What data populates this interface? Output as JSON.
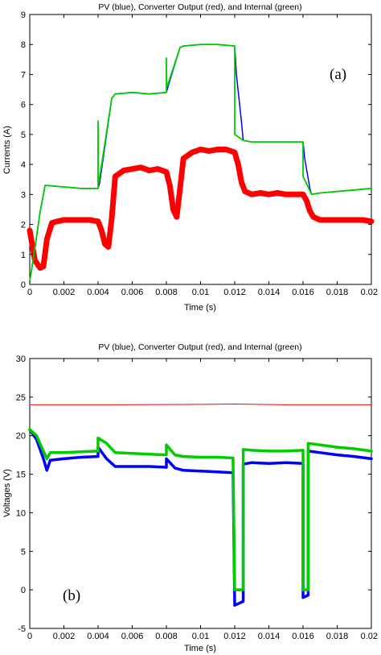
{
  "chart_data": [
    {
      "type": "line",
      "title": "PV (blue), Converter Output (red), and Internal (green)",
      "xlabel": "Time (s)",
      "ylabel": "Currents (A)",
      "panel_label": "(a)",
      "xlim": [
        0,
        0.02
      ],
      "ylim": [
        0,
        9
      ],
      "xticks": [
        "0",
        "0.002",
        "0.004",
        "0.006",
        "0.008",
        "0.01",
        "0.012",
        "0.014",
        "0.016",
        "0.018",
        "0.02"
      ],
      "yticks": [
        "0",
        "1",
        "2",
        "3",
        "4",
        "5",
        "6",
        "7",
        "8",
        "9"
      ],
      "series": [
        {
          "name": "Converter Output",
          "color": "#ff0000",
          "x": [
            0,
            0.0003,
            0.0006,
            0.0008,
            0.001,
            0.0013,
            0.0016,
            0.002,
            0.0025,
            0.003,
            0.0035,
            0.004,
            0.0042,
            0.0044,
            0.0046,
            0.0048,
            0.005,
            0.0055,
            0.006,
            0.0065,
            0.007,
            0.0075,
            0.008,
            0.0082,
            0.0084,
            0.0086,
            0.0088,
            0.009,
            0.0095,
            0.01,
            0.0105,
            0.011,
            0.0115,
            0.012,
            0.0122,
            0.0124,
            0.0126,
            0.013,
            0.0135,
            0.014,
            0.0145,
            0.015,
            0.0155,
            0.016,
            0.0162,
            0.0164,
            0.0166,
            0.017,
            0.0175,
            0.018,
            0.0185,
            0.019,
            0.0195,
            0.02
          ],
          "y": [
            1.8,
            0.8,
            0.55,
            0.6,
            1.5,
            2.05,
            2.1,
            2.15,
            2.15,
            2.15,
            2.15,
            2.1,
            1.8,
            1.35,
            1.25,
            2.2,
            3.6,
            3.8,
            3.85,
            3.9,
            3.8,
            3.85,
            3.75,
            3.3,
            2.5,
            2.25,
            3.2,
            4.2,
            4.4,
            4.5,
            4.45,
            4.5,
            4.5,
            4.4,
            4.0,
            3.4,
            3.1,
            3.0,
            3.05,
            3.0,
            3.05,
            3.0,
            3.0,
            3.0,
            2.8,
            2.45,
            2.25,
            2.15,
            2.15,
            2.15,
            2.15,
            2.15,
            2.15,
            2.1
          ]
        },
        {
          "name": "PV",
          "color": "#0000ff",
          "x": [
            0,
            0.0003,
            0.0006,
            0.0009,
            0.001,
            0.002,
            0.003,
            0.004,
            0.0041,
            0.0048,
            0.005,
            0.006,
            0.007,
            0.008,
            0.0081,
            0.0088,
            0.009,
            0.01,
            0.011,
            0.012,
            0.0121,
            0.0124,
            0.0125,
            0.013,
            0.014,
            0.015,
            0.016,
            0.0161,
            0.0164,
            0.0165,
            0.017,
            0.018,
            0.019,
            0.02
          ],
          "y": [
            0.1,
            1.2,
            2.4,
            3.3,
            3.3,
            3.25,
            3.2,
            3.2,
            3.4,
            6.2,
            6.35,
            6.4,
            6.35,
            6.4,
            6.6,
            7.9,
            7.95,
            8.0,
            8.0,
            7.95,
            7.0,
            5.4,
            4.8,
            4.75,
            4.75,
            4.75,
            4.75,
            4.2,
            3.2,
            3.0,
            3.05,
            3.1,
            3.15,
            3.2
          ]
        },
        {
          "name": "Internal",
          "color": "#00cc00",
          "x": [
            0,
            0.0003,
            0.0006,
            0.0009,
            0.001,
            0.002,
            0.003,
            0.004,
            0.004,
            0.00402,
            0.00405,
            0.0048,
            0.005,
            0.006,
            0.007,
            0.008,
            0.008,
            0.00802,
            0.00805,
            0.0088,
            0.009,
            0.01,
            0.011,
            0.012,
            0.012,
            0.0125,
            0.013,
            0.014,
            0.015,
            0.016,
            0.016,
            0.0165,
            0.017,
            0.018,
            0.019,
            0.02
          ],
          "y": [
            0.1,
            1.2,
            2.4,
            3.3,
            3.3,
            3.25,
            3.2,
            3.2,
            5.45,
            3.4,
            3.4,
            6.2,
            6.35,
            6.4,
            6.35,
            6.4,
            7.55,
            6.6,
            6.6,
            7.9,
            7.95,
            8.0,
            8.0,
            7.95,
            5.0,
            4.8,
            4.75,
            4.75,
            4.75,
            4.75,
            3.6,
            3.0,
            3.05,
            3.1,
            3.15,
            3.2
          ]
        }
      ]
    },
    {
      "type": "line",
      "title": "PV (blue), Converter Output (red), and Internal (green)",
      "xlabel": "Time (s)",
      "ylabel": "Voltages (V)",
      "panel_label": "(b)",
      "xlim": [
        0,
        0.02
      ],
      "ylim": [
        -5,
        30
      ],
      "xticks": [
        "0",
        "0.002",
        "0.004",
        "0.006",
        "0.008",
        "0.01",
        "0.012",
        "0.014",
        "0.016",
        "0.018",
        "0.02"
      ],
      "yticks": [
        "-5",
        "0",
        "5",
        "10",
        "15",
        "20",
        "25",
        "30"
      ],
      "series": [
        {
          "name": "Converter Output",
          "color": "#ff0000",
          "x": [
            0,
            0.005,
            0.01,
            0.012,
            0.015,
            0.02
          ],
          "y": [
            24.0,
            24.0,
            24.05,
            24.1,
            24.0,
            24.0
          ]
        },
        {
          "name": "PV",
          "color": "#0000ff",
          "x": [
            0,
            0.0004,
            0.0008,
            0.001,
            0.0012,
            0.002,
            0.003,
            0.004,
            0.004,
            0.0045,
            0.005,
            0.006,
            0.007,
            0.008,
            0.008,
            0.0085,
            0.009,
            0.01,
            0.011,
            0.0119,
            0.012,
            0.0125,
            0.0125,
            0.013,
            0.014,
            0.015,
            0.016,
            0.016,
            0.0163,
            0.0163,
            0.017,
            0.018,
            0.019,
            0.02
          ],
          "y": [
            20.8,
            19.5,
            17.0,
            15.5,
            16.8,
            17.0,
            17.2,
            17.3,
            18.5,
            17.0,
            16.0,
            16.0,
            16.0,
            15.9,
            17.0,
            15.8,
            15.5,
            15.4,
            15.3,
            15.2,
            -2.0,
            -1.5,
            16.3,
            16.5,
            16.4,
            16.5,
            16.4,
            -1.0,
            -0.7,
            18.0,
            17.8,
            17.5,
            17.3,
            17.0
          ]
        },
        {
          "name": "Internal",
          "color": "#00cc00",
          "x": [
            0,
            0.0004,
            0.0008,
            0.001,
            0.0012,
            0.002,
            0.003,
            0.004,
            0.004,
            0.0045,
            0.005,
            0.006,
            0.007,
            0.008,
            0.008,
            0.0085,
            0.009,
            0.01,
            0.011,
            0.0119,
            0.012,
            0.0125,
            0.0125,
            0.013,
            0.014,
            0.015,
            0.016,
            0.016,
            0.0163,
            0.0163,
            0.017,
            0.018,
            0.019,
            0.02
          ],
          "y": [
            20.8,
            20.0,
            18.0,
            17.0,
            17.8,
            17.8,
            17.9,
            18.0,
            19.7,
            19.0,
            17.8,
            17.7,
            17.6,
            17.5,
            18.8,
            17.5,
            17.3,
            17.2,
            17.2,
            17.1,
            0.0,
            0.0,
            18.2,
            18.1,
            18.0,
            18.0,
            18.1,
            0.0,
            0.0,
            19.0,
            18.8,
            18.5,
            18.3,
            18.0
          ]
        }
      ]
    }
  ]
}
